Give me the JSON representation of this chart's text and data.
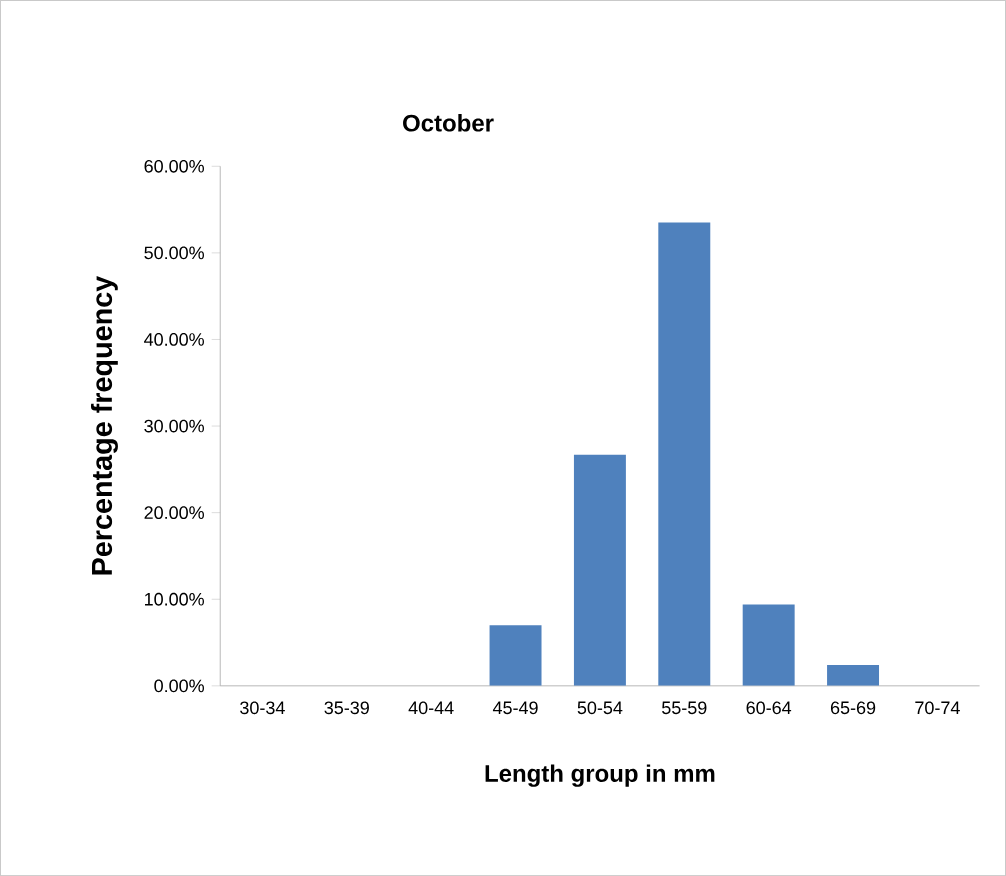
{
  "chart_data": {
    "type": "bar",
    "title": "October",
    "xlabel": "Length group in mm",
    "ylabel": "Percentage frequency",
    "categories": [
      "30-34",
      "35-39",
      "40-44",
      "45-49",
      "50-54",
      "55-59",
      "60-64",
      "65-69",
      "70-74"
    ],
    "values": [
      0,
      0,
      0,
      7.0,
      26.7,
      53.5,
      9.4,
      2.4,
      0
    ],
    "color": "#4f81bd",
    "ylim": [
      0,
      60
    ],
    "yticks": [
      {
        "value": 0,
        "label": "0.00%"
      },
      {
        "value": 10,
        "label": "10.00%"
      },
      {
        "value": 20,
        "label": "20.00%"
      },
      {
        "value": 30,
        "label": "30.00%"
      },
      {
        "value": 40,
        "label": "40.00%"
      },
      {
        "value": 50,
        "label": "50.00%"
      },
      {
        "value": 60,
        "label": "60.00%"
      }
    ],
    "grid": false
  }
}
